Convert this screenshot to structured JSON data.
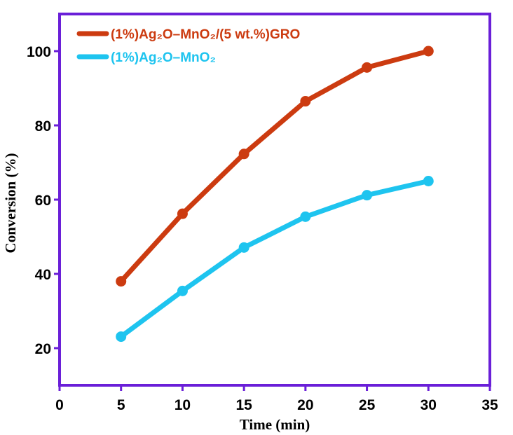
{
  "chart_data": {
    "type": "line",
    "title": "",
    "xlabel": "Time (min)",
    "ylabel": "Conversion (%)",
    "xlim": [
      0,
      35
    ],
    "ylim": [
      10,
      110
    ],
    "xticks": [
      0,
      5,
      10,
      15,
      20,
      25,
      30,
      35
    ],
    "yticks": [
      20,
      40,
      60,
      80,
      100
    ],
    "grid": false,
    "legend_position": "top-left",
    "frame_color": "#6a1fd8",
    "series": [
      {
        "name": "(1%)Ag₂O–MnO₂/(5 wt.%)GRO",
        "color": "#cc3b10",
        "x": [
          5,
          10,
          15,
          20,
          25,
          30
        ],
        "values": [
          38,
          56.2,
          72.3,
          86.5,
          95.6,
          100
        ]
      },
      {
        "name": "(1%)Ag₂O–MnO₂",
        "color": "#1ec4ef",
        "x": [
          5,
          10,
          15,
          20,
          25,
          30
        ],
        "values": [
          23.1,
          35.4,
          47.1,
          55.4,
          61.2,
          65
        ]
      }
    ]
  }
}
